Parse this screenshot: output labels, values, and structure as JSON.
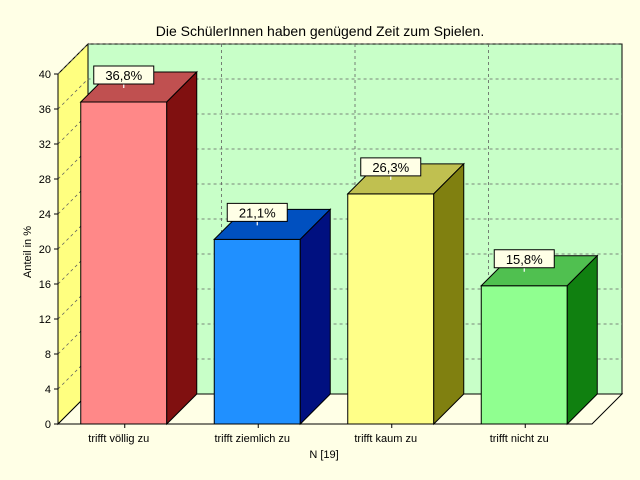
{
  "chart_data": {
    "type": "bar",
    "title": "Die SchülerInnen haben genügend Zeit zum Spielen.",
    "xlabel": "N [19]",
    "ylabel": "Anteil in %",
    "ylim": [
      0,
      40
    ],
    "yticks": [
      0,
      4,
      8,
      12,
      16,
      20,
      24,
      28,
      32,
      36,
      40
    ],
    "grid": true,
    "three_d": true,
    "categories": [
      "trifft völlig zu",
      "trifft ziemlich zu",
      "trifft kaum zu",
      "trifft nicht zu"
    ],
    "values": [
      36.8,
      21.1,
      26.3,
      15.8
    ],
    "data_labels": [
      "36,8%",
      "21,1%",
      "26,3%",
      "15,8%"
    ],
    "colors": [
      {
        "front": "#ff8888",
        "top": "#c05050",
        "side": "#801010"
      },
      {
        "front": "#2090ff",
        "top": "#0050c0",
        "side": "#001080"
      },
      {
        "front": "#ffff88",
        "top": "#c0c050",
        "side": "#808010"
      },
      {
        "front": "#90ff90",
        "top": "#50c050",
        "side": "#108010"
      }
    ],
    "background_color": "#ffffe6",
    "plot_wall_color": "#c8ffc8",
    "left_wall_color": "#ffff80"
  }
}
